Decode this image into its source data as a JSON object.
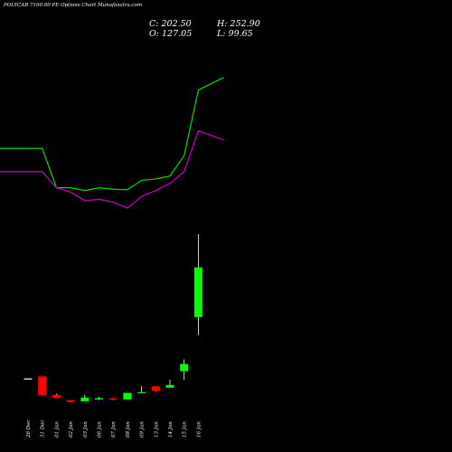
{
  "title": "POLYCAB 7100.00 PE Options Chart Munafasutra.com",
  "ohlc": {
    "close": "C: 202.50",
    "open": "O: 127.05",
    "high": "H: 252.90",
    "low": "L: 99.65"
  },
  "colors": {
    "background": "#000000",
    "up": "#00ff00",
    "down": "#ff0000",
    "line_green": "#00dd00",
    "line_magenta": "#cc00cc",
    "text": "#ffffff"
  },
  "chart_data": {
    "type": "candlestick",
    "title": "POLYCAB 7100.00 PE Options Chart Munafasutra.com",
    "categories": [
      "26 Dec",
      "31 Dec",
      "01 Jan",
      "02 Jan",
      "03 Jan",
      "06 Jan",
      "07 Jan",
      "08 Jan",
      "09 Jan",
      "13 Jan",
      "14 Jan",
      "15 Jan",
      "16 Jan"
    ],
    "candles": [
      {
        "o": 34,
        "h": 34,
        "l": 34,
        "c": 34
      },
      {
        "o": 37,
        "h": 37,
        "l": 8,
        "c": 8
      },
      {
        "o": 9,
        "h": 11,
        "l": 4,
        "c": 4
      },
      {
        "o": 1,
        "h": 1,
        "l": -2,
        "c": -2
      },
      {
        "o": -1,
        "h": 9,
        "l": -1,
        "c": 5
      },
      {
        "o": 2,
        "h": 6,
        "l": 1,
        "c": 4
      },
      {
        "o": 4,
        "h": 4,
        "l": 1,
        "c": 2
      },
      {
        "o": 2,
        "h": 12,
        "l": 2,
        "c": 12
      },
      {
        "o": 13,
        "h": 22,
        "l": 12,
        "c": 13
      },
      {
        "o": 22,
        "h": 22,
        "l": 14,
        "c": 15
      },
      {
        "o": 20,
        "h": 32,
        "l": 20,
        "c": 24
      },
      {
        "o": 45,
        "h": 63,
        "l": 32,
        "c": 56
      },
      {
        "o": 127.05,
        "h": 252.9,
        "l": 99.65,
        "c": 202.5
      }
    ],
    "lines": [
      {
        "color": "#00dd00",
        "values": [
          2.2,
          2.2,
          0.85,
          0.85,
          0.75,
          0.85,
          0.8,
          0.78,
          1.1,
          1.15,
          1.25,
          1.95,
          4.2
        ]
      },
      {
        "color": "#cc00cc",
        "values": [
          1.4,
          1.4,
          0.85,
          0.7,
          0.4,
          0.45,
          0.35,
          0.15,
          0.55,
          0.75,
          1.0,
          1.4,
          2.8
        ]
      }
    ]
  }
}
